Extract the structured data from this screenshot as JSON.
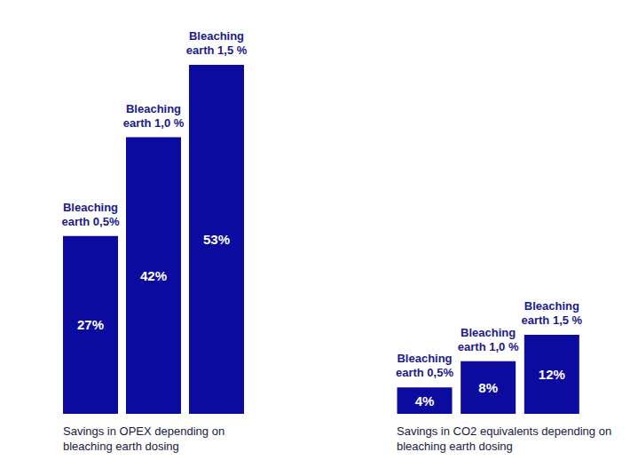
{
  "chart_data": [
    {
      "type": "bar",
      "title": "Savings in OPEX depending on bleaching earth dosing",
      "categories": [
        "Bleaching earth 0,5%",
        "Bleaching earth 1,0 %",
        "Bleaching earth 1,5 %"
      ],
      "values": [
        27,
        42,
        53
      ],
      "value_labels": [
        "27%",
        "42%",
        "53%"
      ],
      "color": "#0b0ba0",
      "ylim": [
        0,
        60
      ],
      "data_labels": true,
      "tick_labels": false
    },
    {
      "type": "bar",
      "title": "Savings in CO2 equivalents depending on bleaching earth dosing",
      "categories": [
        "Bleaching earth 0,5%",
        "Bleaching earth 1,0 %",
        "Bleaching earth 1,5 %"
      ],
      "values": [
        4,
        8,
        12
      ],
      "value_labels": [
        "4%",
        "8%",
        "12%"
      ],
      "color": "#0b0ba0",
      "ylim": [
        0,
        60
      ],
      "data_labels": true,
      "tick_labels": false
    }
  ]
}
